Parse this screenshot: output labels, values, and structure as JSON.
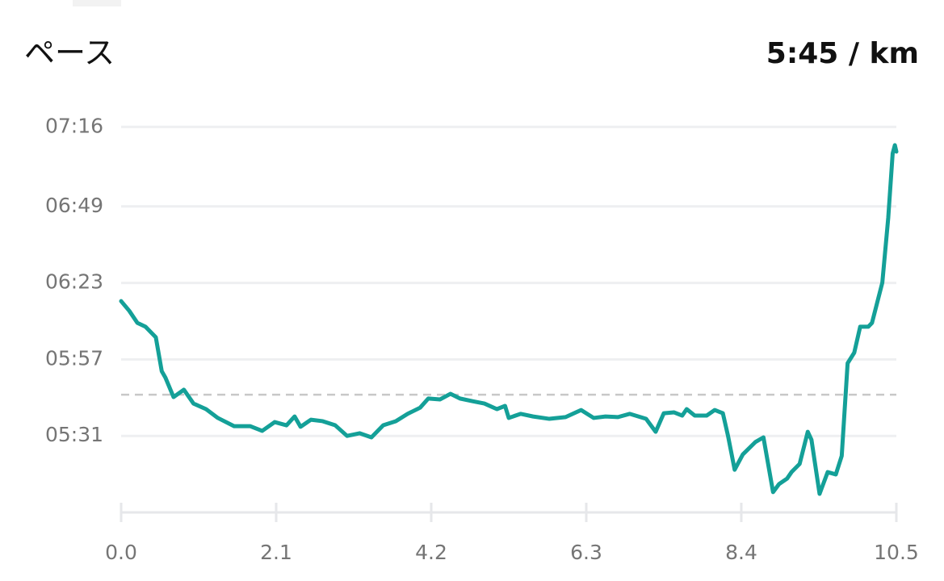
{
  "chart_data": {
    "type": "line",
    "title": "ペース",
    "average": {
      "value": 345,
      "label": "5:45 / km"
    },
    "color": "#14a098",
    "grid": true,
    "xlim": [
      0,
      10.5
    ],
    "xticks": [
      {
        "value": 0,
        "label": "0.0"
      },
      2.1,
      4.2,
      6.3,
      8.4,
      10.5
    ],
    "ylim": [
      305,
      438
    ],
    "yticks": [
      {
        "value": 331,
        "label": "05:31"
      },
      {
        "value": 357,
        "label": "05:57"
      },
      {
        "value": 383,
        "label": "06:23"
      },
      {
        "value": 409,
        "label": "06:49"
      },
      {
        "value": 436,
        "label": "07:16"
      }
    ],
    "x": [
      0,
      0.11,
      0.22,
      0.33,
      0.47,
      0.55,
      0.6,
      0.71,
      0.85,
      0.98,
      1.15,
      1.31,
      1.53,
      1.75,
      1.91,
      2.08,
      2.24,
      2.35,
      2.43,
      2.57,
      2.73,
      2.9,
      3.06,
      3.23,
      3.39,
      3.55,
      3.72,
      3.88,
      4.05,
      4.16,
      4.32,
      4.46,
      4.59,
      4.76,
      4.92,
      5.09,
      5.2,
      5.25,
      5.41,
      5.58,
      5.8,
      6.02,
      6.23,
      6.4,
      6.56,
      6.73,
      6.89,
      7.11,
      7.24,
      7.35,
      7.49,
      7.6,
      7.66,
      7.77,
      7.93,
      8.04,
      8.15,
      8.22,
      8.31,
      8.42,
      8.59,
      8.7,
      8.83,
      8.91,
      9.02,
      9.08,
      9.19,
      9.3,
      9.35,
      9.46,
      9.57,
      9.68,
      9.76,
      9.84,
      9.93,
      10.01,
      10.12,
      10.17,
      10.31,
      10.39,
      10.45,
      10.48,
      10.5
    ],
    "values": [
      376.8,
      373.5,
      369.4,
      368.1,
      364.5,
      353,
      350.8,
      344.2,
      346.7,
      342,
      340.1,
      337.1,
      334.3,
      334.3,
      332.7,
      335.7,
      334.6,
      337.6,
      334.1,
      336.5,
      336,
      334.6,
      331,
      331.9,
      330.5,
      334.6,
      336,
      338.5,
      340.6,
      343.7,
      343.4,
      345.3,
      343.7,
      342.8,
      342,
      340.1,
      341.2,
      337.1,
      338.5,
      337.6,
      336.8,
      337.4,
      339.8,
      337.1,
      337.6,
      337.4,
      338.5,
      336.8,
      332.4,
      338.7,
      339,
      337.9,
      340.1,
      337.9,
      337.9,
      339.8,
      338.7,
      331,
      319.5,
      324.7,
      328.9,
      330.5,
      311.9,
      314.6,
      316.5,
      318.7,
      321.5,
      332.4,
      329.7,
      311.3,
      318.7,
      317.9,
      324.2,
      355.7,
      359.3,
      368.1,
      368.1,
      369.4,
      383.1,
      405.1,
      427,
      429.8,
      427.6
    ]
  }
}
